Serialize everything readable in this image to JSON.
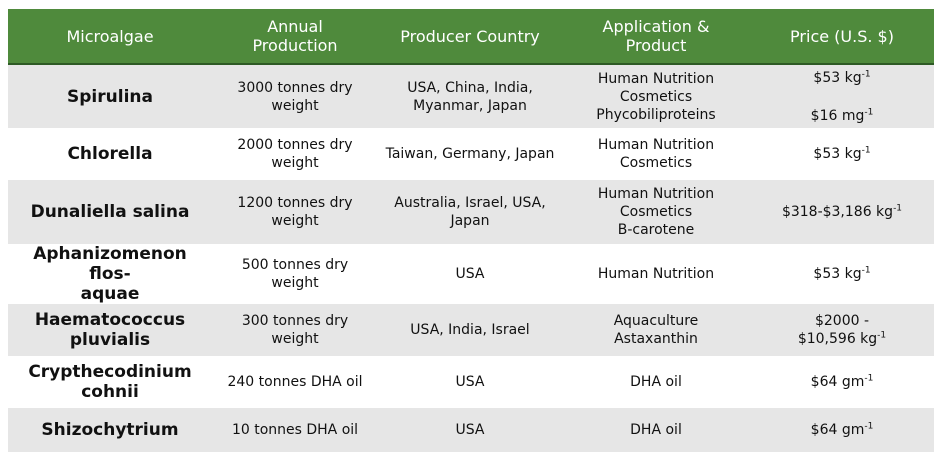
{
  "headers": [
    "Microalgae",
    "Annual Production",
    "Producer Country",
    "Application & Product",
    "Price (U.S. $)"
  ],
  "header_lines": [
    [
      "Microalgae"
    ],
    [
      "Annual",
      "Production"
    ],
    [
      "Producer Country"
    ],
    [
      "Application &",
      "Product"
    ],
    [
      "Price (U.S. $)"
    ]
  ],
  "rows": [
    {
      "name": [
        "Spirulina"
      ],
      "production": [
        "3000 tonnes dry",
        "weight"
      ],
      "country": [
        "USA, China, India,",
        "Myanmar, Japan"
      ],
      "application": [
        "Human Nutrition",
        "Cosmetics",
        "Phycobiliproteins"
      ],
      "price": [
        {
          "text": "$53 kg",
          "sup": "-1"
        },
        {
          "text": "$16 mg",
          "sup": "-1"
        }
      ]
    },
    {
      "name": [
        "Chlorella"
      ],
      "production": [
        "2000 tonnes dry",
        "weight"
      ],
      "country": [
        "Taiwan, Germany, Japan"
      ],
      "application": [
        "Human Nutrition",
        "Cosmetics"
      ],
      "price": [
        {
          "text": "$53 kg",
          "sup": "-1"
        }
      ]
    },
    {
      "name": [
        "Dunaliella salina"
      ],
      "production": [
        "1200 tonnes dry",
        "weight"
      ],
      "country": [
        "Australia, Israel, USA,",
        "Japan"
      ],
      "application": [
        "Human Nutrition",
        "Cosmetics",
        "B-carotene"
      ],
      "price": [
        {
          "text": "$318-$3,186 kg",
          "sup": "-1"
        }
      ]
    },
    {
      "name": [
        "Aphanizomenon flos-",
        "aquae"
      ],
      "production": [
        "500 tonnes dry",
        "weight"
      ],
      "country": [
        "USA"
      ],
      "application": [
        "Human Nutrition"
      ],
      "price": [
        {
          "text": "$53 kg",
          "sup": "-1"
        }
      ]
    },
    {
      "name": [
        "Haematococcus",
        "pluvialis"
      ],
      "production": [
        "300 tonnes dry",
        "weight"
      ],
      "country": [
        "USA, India, Israel"
      ],
      "application": [
        "Aquaculture",
        "Astaxanthin"
      ],
      "price": [
        {
          "text": "$2000 -",
          "sup": ""
        },
        {
          "text": "$10,596 kg",
          "sup": "-1"
        }
      ]
    },
    {
      "name": [
        "Crypthecodinium",
        "cohnii"
      ],
      "production": [
        "240 tonnes DHA oil"
      ],
      "country": [
        "USA"
      ],
      "application": [
        "DHA oil"
      ],
      "price": [
        {
          "text": "$64 gm",
          "sup": "-1"
        }
      ]
    },
    {
      "name": [
        "Shizochytrium"
      ],
      "production": [
        "10 tonnes DHA oil"
      ],
      "country": [
        "USA"
      ],
      "application": [
        "DHA oil"
      ],
      "price": [
        {
          "text": "$64 gm",
          "sup": "-1"
        }
      ]
    }
  ]
}
